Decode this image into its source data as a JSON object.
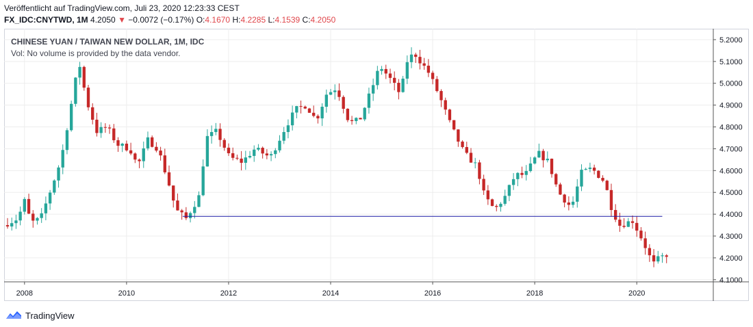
{
  "header": {
    "published": "Veröffentlicht auf TradingView.com, Juli 23, 2020 12:23:33 CEST",
    "symbol": "FX_IDC:CNYTWD, 1M",
    "last": "4.2050",
    "arrow": "▼",
    "change": "−0.0072 (−0.17%)",
    "o_label": "O:",
    "o_value": "4.1670",
    "h_label": "H:",
    "h_value": "4.2285",
    "l_label": "L:",
    "l_value": "4.1539",
    "c_label": "C:",
    "c_value": "4.2050"
  },
  "legend": {
    "title": "CHINESE YUAN / TAIWAN NEW DOLLAR, 1M, IDC",
    "volume_note": "Vol: No volume is provided by the data vendor."
  },
  "footer": {
    "brand": "TradingView"
  },
  "colors": {
    "up": "#26a69a",
    "down": "#c62828",
    "hline": "#1a1aa6",
    "grid": "#ededed",
    "axis": "#555555"
  },
  "chart_data": {
    "type": "candlestick",
    "interval": "1M",
    "x_range": [
      2007.6,
      2021.5
    ],
    "ylim": [
      4.09,
      5.25
    ],
    "x_ticks": [
      2008,
      2010,
      2012,
      2014,
      2016,
      2018,
      2020
    ],
    "y_ticks": [
      "4.1000",
      "4.2000",
      "4.3000",
      "4.4000",
      "4.5000",
      "4.6000",
      "4.7000",
      "4.8000",
      "4.9000",
      "5.0000",
      "5.1000",
      "5.2000"
    ],
    "horizontal_line": {
      "value": 4.39,
      "from": 2011.1,
      "to": 2020.5
    },
    "waypoints": [
      [
        2007.667,
        4.35
      ],
      [
        2007.95,
        4.38
      ],
      [
        2008.1,
        4.47
      ],
      [
        2008.2,
        4.36
      ],
      [
        2008.4,
        4.38
      ],
      [
        2008.55,
        4.48
      ],
      [
        2008.8,
        4.65
      ],
      [
        2008.95,
        4.84
      ],
      [
        2009.15,
        5.1
      ],
      [
        2009.3,
        4.92
      ],
      [
        2009.5,
        4.78
      ],
      [
        2009.7,
        4.8
      ],
      [
        2009.9,
        4.72
      ],
      [
        2010.15,
        4.7
      ],
      [
        2010.3,
        4.62
      ],
      [
        2010.5,
        4.74
      ],
      [
        2010.7,
        4.7
      ],
      [
        2010.9,
        4.55
      ],
      [
        2011.05,
        4.42
      ],
      [
        2011.25,
        4.38
      ],
      [
        2011.5,
        4.48
      ],
      [
        2011.65,
        4.75
      ],
      [
        2011.85,
        4.78
      ],
      [
        2012.1,
        4.66
      ],
      [
        2012.35,
        4.64
      ],
      [
        2012.6,
        4.7
      ],
      [
        2012.9,
        4.66
      ],
      [
        2013.2,
        4.8
      ],
      [
        2013.4,
        4.88
      ],
      [
        2013.6,
        4.9
      ],
      [
        2013.8,
        4.83
      ],
      [
        2014.0,
        4.95
      ],
      [
        2014.2,
        4.98
      ],
      [
        2014.45,
        4.82
      ],
      [
        2014.65,
        4.83
      ],
      [
        2014.85,
        4.95
      ],
      [
        2015.05,
        5.08
      ],
      [
        2015.25,
        5.02
      ],
      [
        2015.45,
        4.95
      ],
      [
        2015.6,
        5.12
      ],
      [
        2015.75,
        5.13
      ],
      [
        2016.0,
        5.05
      ],
      [
        2016.2,
        4.95
      ],
      [
        2016.45,
        4.8
      ],
      [
        2016.7,
        4.68
      ],
      [
        2016.95,
        4.62
      ],
      [
        2017.1,
        4.48
      ],
      [
        2017.3,
        4.42
      ],
      [
        2017.5,
        4.48
      ],
      [
        2017.7,
        4.58
      ],
      [
        2017.9,
        4.58
      ],
      [
        2018.15,
        4.68
      ],
      [
        2018.35,
        4.64
      ],
      [
        2018.55,
        4.5
      ],
      [
        2018.8,
        4.43
      ],
      [
        2019.0,
        4.59
      ],
      [
        2019.2,
        4.61
      ],
      [
        2019.45,
        4.55
      ],
      [
        2019.6,
        4.42
      ],
      [
        2019.75,
        4.35
      ],
      [
        2020.0,
        4.37
      ],
      [
        2020.2,
        4.28
      ],
      [
        2020.4,
        4.17
      ],
      [
        2020.55,
        4.205
      ]
    ]
  }
}
